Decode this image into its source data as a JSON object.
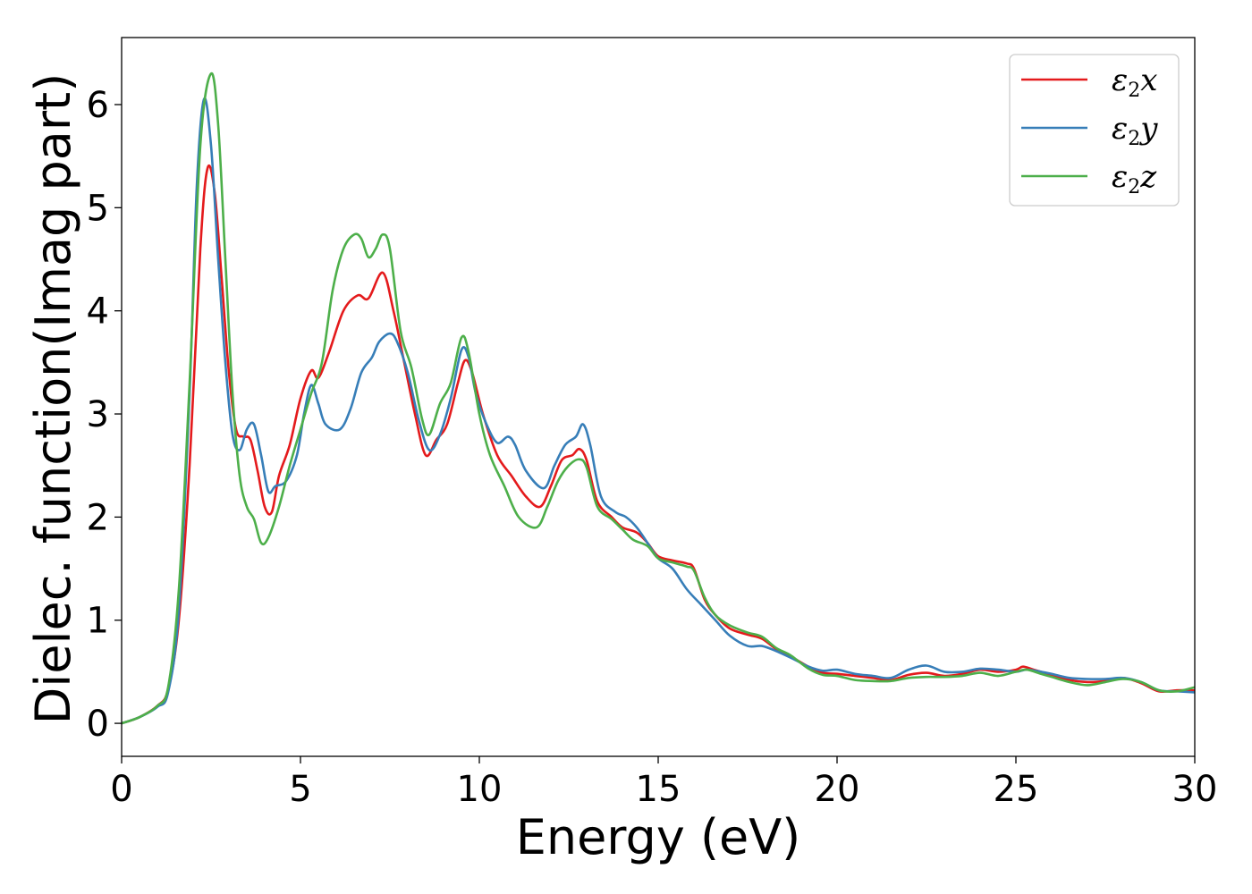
{
  "chart_data": {
    "type": "line",
    "title": "",
    "xlabel": "Energy (eV)",
    "ylabel": "Dielec. function(Imag part)",
    "xlim": [
      0,
      30
    ],
    "ylim": [
      -0.32,
      6.65
    ],
    "xticks": [
      0,
      5,
      10,
      15,
      20,
      25,
      30
    ],
    "yticks": [
      0,
      1,
      2,
      3,
      4,
      5,
      6
    ],
    "grid": false,
    "legend_position": "top-right",
    "series": [
      {
        "name": "ε2x",
        "legend": {
          "base": "ε",
          "sub": "2",
          "tail": "x"
        },
        "color": "#e41a1c",
        "points": [
          [
            0,
            0
          ],
          [
            0.5,
            0.06
          ],
          [
            1.0,
            0.17
          ],
          [
            1.3,
            0.33
          ],
          [
            1.6,
            1.0
          ],
          [
            1.9,
            2.5
          ],
          [
            2.2,
            4.6
          ],
          [
            2.4,
            5.38
          ],
          [
            2.6,
            5.15
          ],
          [
            2.8,
            4.3
          ],
          [
            3.0,
            3.4
          ],
          [
            3.2,
            2.85
          ],
          [
            3.4,
            2.78
          ],
          [
            3.6,
            2.75
          ],
          [
            3.8,
            2.45
          ],
          [
            4.0,
            2.1
          ],
          [
            4.2,
            2.05
          ],
          [
            4.4,
            2.4
          ],
          [
            4.7,
            2.7
          ],
          [
            5.0,
            3.15
          ],
          [
            5.3,
            3.42
          ],
          [
            5.5,
            3.35
          ],
          [
            5.8,
            3.6
          ],
          [
            6.2,
            4.0
          ],
          [
            6.6,
            4.15
          ],
          [
            6.9,
            4.12
          ],
          [
            7.3,
            4.37
          ],
          [
            7.6,
            4.0
          ],
          [
            7.9,
            3.5
          ],
          [
            8.2,
            3.0
          ],
          [
            8.5,
            2.6
          ],
          [
            8.8,
            2.75
          ],
          [
            9.1,
            2.9
          ],
          [
            9.4,
            3.3
          ],
          [
            9.6,
            3.52
          ],
          [
            9.8,
            3.4
          ],
          [
            10.1,
            3.0
          ],
          [
            10.5,
            2.6
          ],
          [
            10.9,
            2.4
          ],
          [
            11.3,
            2.2
          ],
          [
            11.7,
            2.1
          ],
          [
            12.0,
            2.3
          ],
          [
            12.3,
            2.55
          ],
          [
            12.6,
            2.6
          ],
          [
            12.8,
            2.66
          ],
          [
            13.0,
            2.55
          ],
          [
            13.3,
            2.15
          ],
          [
            13.7,
            2.0
          ],
          [
            14.0,
            1.9
          ],
          [
            14.4,
            1.85
          ],
          [
            14.7,
            1.75
          ],
          [
            15.0,
            1.62
          ],
          [
            15.4,
            1.58
          ],
          [
            15.8,
            1.55
          ],
          [
            16.0,
            1.5
          ],
          [
            16.3,
            1.2
          ],
          [
            16.6,
            1.05
          ],
          [
            17.0,
            0.92
          ],
          [
            17.5,
            0.86
          ],
          [
            17.9,
            0.82
          ],
          [
            18.3,
            0.72
          ],
          [
            18.7,
            0.65
          ],
          [
            19.2,
            0.55
          ],
          [
            19.6,
            0.49
          ],
          [
            20.0,
            0.48
          ],
          [
            20.5,
            0.46
          ],
          [
            21.0,
            0.44
          ],
          [
            21.5,
            0.42
          ],
          [
            22.0,
            0.47
          ],
          [
            22.5,
            0.49
          ],
          [
            23.0,
            0.46
          ],
          [
            23.5,
            0.48
          ],
          [
            24.0,
            0.52
          ],
          [
            24.5,
            0.5
          ],
          [
            25.0,
            0.52
          ],
          [
            25.2,
            0.55
          ],
          [
            25.5,
            0.52
          ],
          [
            26.0,
            0.47
          ],
          [
            26.5,
            0.42
          ],
          [
            27.0,
            0.4
          ],
          [
            27.5,
            0.41
          ],
          [
            28.0,
            0.44
          ],
          [
            28.5,
            0.39
          ],
          [
            29.0,
            0.31
          ],
          [
            29.5,
            0.32
          ],
          [
            30.0,
            0.32
          ]
        ]
      },
      {
        "name": "ε2y",
        "legend": {
          "base": "ε",
          "sub": "2",
          "tail": "y"
        },
        "color": "#377eb8",
        "points": [
          [
            0,
            0
          ],
          [
            0.5,
            0.06
          ],
          [
            1.0,
            0.16
          ],
          [
            1.3,
            0.3
          ],
          [
            1.6,
            1.1
          ],
          [
            1.9,
            3.2
          ],
          [
            2.1,
            5.2
          ],
          [
            2.3,
            6.05
          ],
          [
            2.5,
            5.6
          ],
          [
            2.7,
            4.5
          ],
          [
            2.9,
            3.5
          ],
          [
            3.1,
            2.8
          ],
          [
            3.3,
            2.65
          ],
          [
            3.5,
            2.85
          ],
          [
            3.7,
            2.9
          ],
          [
            3.9,
            2.6
          ],
          [
            4.1,
            2.25
          ],
          [
            4.3,
            2.3
          ],
          [
            4.6,
            2.35
          ],
          [
            4.9,
            2.6
          ],
          [
            5.1,
            3.0
          ],
          [
            5.3,
            3.28
          ],
          [
            5.5,
            3.1
          ],
          [
            5.7,
            2.9
          ],
          [
            6.1,
            2.85
          ],
          [
            6.4,
            3.05
          ],
          [
            6.7,
            3.4
          ],
          [
            7.0,
            3.55
          ],
          [
            7.2,
            3.7
          ],
          [
            7.5,
            3.78
          ],
          [
            7.7,
            3.7
          ],
          [
            8.0,
            3.4
          ],
          [
            8.3,
            2.95
          ],
          [
            8.6,
            2.65
          ],
          [
            8.9,
            2.8
          ],
          [
            9.2,
            3.15
          ],
          [
            9.5,
            3.62
          ],
          [
            9.7,
            3.55
          ],
          [
            9.9,
            3.2
          ],
          [
            10.2,
            2.9
          ],
          [
            10.5,
            2.72
          ],
          [
            10.8,
            2.78
          ],
          [
            11.0,
            2.7
          ],
          [
            11.3,
            2.45
          ],
          [
            11.8,
            2.28
          ],
          [
            12.1,
            2.5
          ],
          [
            12.4,
            2.7
          ],
          [
            12.7,
            2.78
          ],
          [
            12.9,
            2.9
          ],
          [
            13.1,
            2.7
          ],
          [
            13.4,
            2.2
          ],
          [
            13.8,
            2.05
          ],
          [
            14.1,
            2.0
          ],
          [
            14.4,
            1.9
          ],
          [
            14.7,
            1.75
          ],
          [
            15.0,
            1.6
          ],
          [
            15.4,
            1.5
          ],
          [
            15.8,
            1.3
          ],
          [
            16.2,
            1.15
          ],
          [
            16.6,
            1.0
          ],
          [
            17.0,
            0.85
          ],
          [
            17.5,
            0.75
          ],
          [
            17.9,
            0.75
          ],
          [
            18.3,
            0.7
          ],
          [
            18.8,
            0.62
          ],
          [
            19.2,
            0.55
          ],
          [
            19.6,
            0.51
          ],
          [
            20.0,
            0.52
          ],
          [
            20.5,
            0.48
          ],
          [
            21.0,
            0.46
          ],
          [
            21.5,
            0.44
          ],
          [
            22.0,
            0.52
          ],
          [
            22.5,
            0.56
          ],
          [
            23.0,
            0.5
          ],
          [
            23.5,
            0.5
          ],
          [
            24.0,
            0.53
          ],
          [
            24.5,
            0.52
          ],
          [
            25.0,
            0.5
          ],
          [
            25.3,
            0.52
          ],
          [
            25.7,
            0.5
          ],
          [
            26.0,
            0.48
          ],
          [
            26.5,
            0.44
          ],
          [
            27.0,
            0.43
          ],
          [
            27.5,
            0.43
          ],
          [
            28.0,
            0.44
          ],
          [
            28.5,
            0.4
          ],
          [
            29.0,
            0.32
          ],
          [
            29.5,
            0.31
          ],
          [
            30.0,
            0.3
          ]
        ]
      },
      {
        "name": "ε2z",
        "legend": {
          "base": "ε",
          "sub": "2",
          "tail": "z"
        },
        "color": "#4daf4a",
        "points": [
          [
            0,
            0
          ],
          [
            0.5,
            0.06
          ],
          [
            1.0,
            0.17
          ],
          [
            1.3,
            0.35
          ],
          [
            1.6,
            1.3
          ],
          [
            1.9,
            3.3
          ],
          [
            2.2,
            5.6
          ],
          [
            2.5,
            6.3
          ],
          [
            2.7,
            5.8
          ],
          [
            2.9,
            4.5
          ],
          [
            3.1,
            3.2
          ],
          [
            3.3,
            2.4
          ],
          [
            3.5,
            2.1
          ],
          [
            3.7,
            1.98
          ],
          [
            3.9,
            1.75
          ],
          [
            4.1,
            1.8
          ],
          [
            4.4,
            2.1
          ],
          [
            4.7,
            2.5
          ],
          [
            5.0,
            2.85
          ],
          [
            5.3,
            3.2
          ],
          [
            5.6,
            3.5
          ],
          [
            5.9,
            4.2
          ],
          [
            6.2,
            4.6
          ],
          [
            6.5,
            4.74
          ],
          [
            6.7,
            4.7
          ],
          [
            6.9,
            4.52
          ],
          [
            7.1,
            4.6
          ],
          [
            7.3,
            4.74
          ],
          [
            7.5,
            4.6
          ],
          [
            7.8,
            3.8
          ],
          [
            8.1,
            3.45
          ],
          [
            8.4,
            2.95
          ],
          [
            8.6,
            2.8
          ],
          [
            8.9,
            3.1
          ],
          [
            9.2,
            3.3
          ],
          [
            9.5,
            3.74
          ],
          [
            9.7,
            3.6
          ],
          [
            10.0,
            3.0
          ],
          [
            10.3,
            2.6
          ],
          [
            10.7,
            2.3
          ],
          [
            11.1,
            2.0
          ],
          [
            11.6,
            1.9
          ],
          [
            11.9,
            2.1
          ],
          [
            12.2,
            2.35
          ],
          [
            12.5,
            2.5
          ],
          [
            12.8,
            2.56
          ],
          [
            13.0,
            2.48
          ],
          [
            13.3,
            2.1
          ],
          [
            13.7,
            1.98
          ],
          [
            14.0,
            1.88
          ],
          [
            14.3,
            1.78
          ],
          [
            14.7,
            1.72
          ],
          [
            15.0,
            1.6
          ],
          [
            15.4,
            1.56
          ],
          [
            15.8,
            1.52
          ],
          [
            16.0,
            1.48
          ],
          [
            16.3,
            1.22
          ],
          [
            16.6,
            1.05
          ],
          [
            17.0,
            0.95
          ],
          [
            17.5,
            0.88
          ],
          [
            17.9,
            0.84
          ],
          [
            18.3,
            0.73
          ],
          [
            18.7,
            0.66
          ],
          [
            19.2,
            0.53
          ],
          [
            19.6,
            0.47
          ],
          [
            20.0,
            0.46
          ],
          [
            20.5,
            0.42
          ],
          [
            21.0,
            0.41
          ],
          [
            21.5,
            0.41
          ],
          [
            22.0,
            0.44
          ],
          [
            22.5,
            0.45
          ],
          [
            23.0,
            0.45
          ],
          [
            23.5,
            0.46
          ],
          [
            24.0,
            0.49
          ],
          [
            24.5,
            0.46
          ],
          [
            25.0,
            0.5
          ],
          [
            25.3,
            0.52
          ],
          [
            25.7,
            0.48
          ],
          [
            26.0,
            0.45
          ],
          [
            26.5,
            0.4
          ],
          [
            27.0,
            0.37
          ],
          [
            27.5,
            0.4
          ],
          [
            28.0,
            0.43
          ],
          [
            28.5,
            0.4
          ],
          [
            29.0,
            0.32
          ],
          [
            29.5,
            0.31
          ],
          [
            30.0,
            0.35
          ]
        ]
      }
    ]
  }
}
